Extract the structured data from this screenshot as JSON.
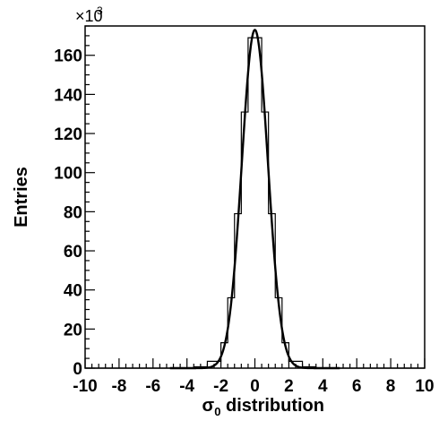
{
  "chart_data": {
    "type": "histogram",
    "xlabel_symbol": "σ",
    "xlabel_subscript": "0",
    "xlabel_rest": " distribution",
    "ylabel": "Entries",
    "y_multiplier_prefix": "×10",
    "y_multiplier_exp": "3",
    "xlim": [
      -10,
      10
    ],
    "ylim": [
      0,
      175
    ],
    "x_ticks": [
      "-10",
      "-8",
      "-6",
      "-4",
      "-2",
      "0",
      "2",
      "4",
      "6",
      "8",
      "10"
    ],
    "y_ticks": [
      "0",
      "20",
      "40",
      "60",
      "80",
      "100",
      "120",
      "140",
      "160"
    ],
    "bin_width": 0.8,
    "bins": [
      {
        "x_low": -10.0,
        "count": 0
      },
      {
        "x_low": -9.2,
        "count": 0
      },
      {
        "x_low": -8.4,
        "count": 0
      },
      {
        "x_low": -7.6,
        "count": 0
      },
      {
        "x_low": -6.8,
        "count": 0
      },
      {
        "x_low": -6.0,
        "count": 0
      },
      {
        "x_low": -5.2,
        "count": 0
      },
      {
        "x_low": -4.4,
        "count": 0.1
      },
      {
        "x_low": -3.6,
        "count": 0.7
      },
      {
        "x_low": -2.8,
        "count": 3.5
      },
      {
        "x_low": -2.0,
        "count": 13
      },
      {
        "x_low": -1.6,
        "count": 36
      },
      {
        "x_low": -1.2,
        "count": 79
      },
      {
        "x_low": -0.8,
        "count": 131
      },
      {
        "x_low": -0.4,
        "count": 169
      },
      {
        "x_low": 0.4,
        "count": 131
      },
      {
        "x_low": 0.8,
        "count": 79
      },
      {
        "x_low": 1.2,
        "count": 36
      },
      {
        "x_low": 1.6,
        "count": 13
      },
      {
        "x_low": 2.0,
        "count": 3.5
      },
      {
        "x_low": 2.8,
        "count": 0.7
      },
      {
        "x_low": 3.6,
        "count": 0.1
      },
      {
        "x_low": 4.4,
        "count": 0
      },
      {
        "x_low": 5.2,
        "count": 0
      },
      {
        "x_low": 6.0,
        "count": 0
      },
      {
        "x_low": 6.8,
        "count": 0
      },
      {
        "x_low": 7.6,
        "count": 0
      },
      {
        "x_low": 8.4,
        "count": 0
      },
      {
        "x_low": 9.2,
        "count": 0
      }
    ],
    "fit": {
      "type": "gaussian",
      "amplitude": 173,
      "mean": 0,
      "sigma": 0.77
    },
    "grid": false,
    "legend": "none"
  }
}
